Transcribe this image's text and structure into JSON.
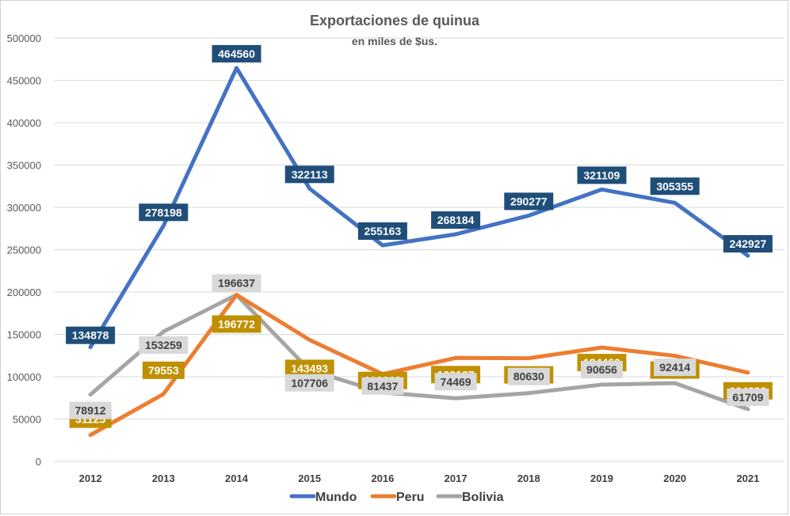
{
  "chart_data": {
    "type": "line",
    "title": "Exportaciones de quinua",
    "subtitle": "en miles de $us.",
    "xlabel": "",
    "ylabel": "",
    "categories": [
      "2012",
      "2013",
      "2014",
      "2015",
      "2016",
      "2017",
      "2018",
      "2019",
      "2020",
      "2021"
    ],
    "ylim": [
      0,
      500000
    ],
    "yticks": [
      0,
      50000,
      100000,
      150000,
      200000,
      250000,
      300000,
      350000,
      400000,
      450000,
      500000
    ],
    "grid": true,
    "legend": "bottom",
    "series": [
      {
        "name": "Mundo",
        "color": "#4472c4",
        "label_bg": "#1f4e79",
        "label_fg": "#ffffff",
        "values": [
          134878,
          278198,
          464560,
          322113,
          255163,
          268184,
          290277,
          321109,
          305355,
          242927
        ]
      },
      {
        "name": "Peru",
        "color": "#ed7d31",
        "label_bg": "#bf9000",
        "label_fg": "#ffffff",
        "values": [
          31125,
          79553,
          196772,
          143493,
          103062,
          122127,
          121829,
          134460,
          124706,
          104832
        ]
      },
      {
        "name": "Bolivia",
        "color": "#a5a5a5",
        "label_bg": "#d9d9d9",
        "label_fg": "#404040",
        "values": [
          78912,
          153259,
          196637,
          107706,
          81437,
          74469,
          80630,
          90656,
          92414,
          61709
        ]
      }
    ]
  }
}
